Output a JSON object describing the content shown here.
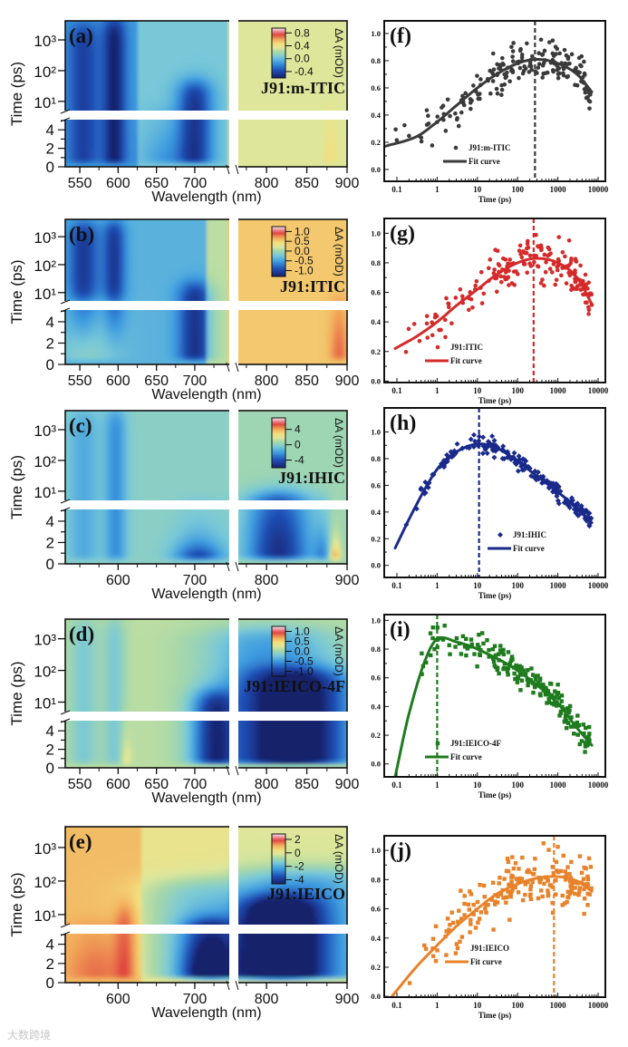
{
  "figure": {
    "watermark": "大数跨境"
  },
  "colormap": [
    [
      0,
      "#17206b"
    ],
    [
      0.15,
      "#1f4fb5"
    ],
    [
      0.3,
      "#3d9be0"
    ],
    [
      0.42,
      "#78c8d8"
    ],
    [
      0.52,
      "#a8d8a8"
    ],
    [
      0.6,
      "#dde69a"
    ],
    [
      0.68,
      "#f3df7e"
    ],
    [
      0.77,
      "#f2ab5a"
    ],
    [
      0.87,
      "#e0473f"
    ],
    [
      0.95,
      "#ef9fae"
    ],
    [
      1,
      "#fbf0f2"
    ]
  ],
  "chart_data": [
    {
      "type": "heatmap",
      "panel_label": "(a)",
      "sample": "J91:m-ITIC",
      "xlabel": "Wavelength (nm)",
      "ylabel": "Time (ps)",
      "x_segments": [
        [
          531,
          745
        ],
        [
          765,
          900
        ]
      ],
      "xticks": [
        550,
        600,
        650,
        700,
        800,
        850,
        900
      ],
      "y_upper": {
        "scale": "log",
        "range": [
          5,
          4170
        ],
        "ticks": [
          10,
          100,
          1000
        ],
        "tick_labels": [
          "10¹",
          "10²",
          "10³"
        ]
      },
      "y_lower": {
        "scale": "linear",
        "range": [
          0,
          5.1
        ],
        "ticks": [
          0,
          2,
          4
        ],
        "tick_labels": [
          "0",
          "2",
          "4"
        ]
      },
      "colorbar": {
        "label": "ΔA (mOD)",
        "range": [
          -0.6,
          0.95
        ],
        "ticks": [
          0.8,
          0.4,
          0.0,
          -0.4
        ],
        "tick_labels": [
          "0.8",
          "0.4",
          "0.0",
          "-0.4"
        ]
      },
      "baseline_levels": [
        [
          625,
          0.3
        ],
        [
          745,
          0.42
        ],
        [
          901,
          0.6
        ]
      ],
      "features": [
        {
          "wl": 555,
          "width": 14,
          "level": -0.2,
          "t_on": 0.3,
          "t_off": 3000
        },
        {
          "wl": 595,
          "width": 10,
          "level": -0.3,
          "t_on": 0,
          "t_off": 4000
        },
        {
          "wl": 700,
          "width": 16,
          "level": -0.35,
          "t_on": 0,
          "t_off": 40
        },
        {
          "wl": 660,
          "width": 20,
          "level": -0.12,
          "t_on": 0,
          "t_off": 4
        },
        {
          "wl": 880,
          "width": 6,
          "level": 0.08,
          "t_on": 0,
          "t_off": 5
        }
      ]
    },
    {
      "type": "heatmap",
      "panel_label": "(b)",
      "sample": "J91:ITIC",
      "xlabel": "Wavelength (nm)",
      "ylabel": "Time (ps)",
      "x_segments": [
        [
          531,
          745
        ],
        [
          765,
          900
        ]
      ],
      "xticks": [
        550,
        600,
        650,
        700,
        800,
        850,
        900
      ],
      "y_upper": {
        "scale": "log",
        "range": [
          5,
          4170
        ],
        "ticks": [
          10,
          100,
          1000
        ],
        "tick_labels": [
          "10¹",
          "10²",
          "10³"
        ]
      },
      "y_lower": {
        "scale": "linear",
        "range": [
          0,
          5.1
        ],
        "ticks": [
          0,
          2,
          4
        ],
        "tick_labels": [
          "0",
          "2",
          "4"
        ]
      },
      "colorbar": {
        "label": "ΔA (mOD)",
        "range": [
          -1.3,
          1.25
        ],
        "ticks": [
          1.0,
          0.5,
          0.0,
          -0.5,
          -1.0
        ],
        "tick_labels": [
          "1.0",
          "0.5",
          "0.0",
          "-0.5",
          "-1.0"
        ]
      },
      "baseline_levels": [
        [
          715,
          0.36
        ],
        [
          745,
          0.55
        ],
        [
          901,
          0.72
        ]
      ],
      "features": [
        {
          "wl": 555,
          "width": 14,
          "level": -0.28,
          "t_on": 5,
          "t_off": 3000
        },
        {
          "wl": 595,
          "width": 10,
          "level": -0.28,
          "t_on": 5,
          "t_off": 3000
        },
        {
          "wl": 700,
          "width": 15,
          "level": -0.3,
          "t_on": 0,
          "t_off": 20
        },
        {
          "wl": 890,
          "width": 8,
          "level": 0.12,
          "t_on": 0,
          "t_off": 5
        },
        {
          "wl": 560,
          "width": 30,
          "level": 0.1,
          "t_on": 0,
          "t_off": 5
        }
      ]
    },
    {
      "type": "heatmap",
      "panel_label": "(c)",
      "sample": "J91:IHIC",
      "xlabel": "Wavelength (nm)",
      "ylabel": "Time (ps)",
      "x_segments": [
        [
          531,
          745
        ],
        [
          765,
          900
        ]
      ],
      "xticks": [
        600,
        700,
        800,
        900
      ],
      "y_upper": {
        "scale": "log",
        "range": [
          5,
          4170
        ],
        "ticks": [
          10,
          100,
          1000
        ],
        "tick_labels": [
          "10¹",
          "10²",
          "10³"
        ]
      },
      "y_lower": {
        "scale": "linear",
        "range": [
          0,
          5.1
        ],
        "ticks": [
          0,
          2,
          4
        ],
        "tick_labels": [
          "0",
          "2",
          "4"
        ]
      },
      "colorbar": {
        "label": "ΔA (mOD)",
        "range": [
          -6,
          7
        ],
        "ticks": [
          4,
          0,
          -4
        ],
        "tick_labels": [
          "4",
          "0",
          "-4"
        ]
      },
      "baseline_levels": [
        [
          745,
          0.46
        ],
        [
          901,
          0.5
        ]
      ],
      "features": [
        {
          "wl": 555,
          "width": 15,
          "level": -0.12,
          "t_on": 0,
          "t_off": 4000
        },
        {
          "wl": 597,
          "width": 10,
          "level": -0.18,
          "t_on": 0,
          "t_off": 4000
        },
        {
          "wl": 705,
          "width": 22,
          "level": -0.42,
          "t_on": 0,
          "t_off": 2
        },
        {
          "wl": 815,
          "width": 28,
          "level": -0.45,
          "t_on": 0,
          "t_off": 8
        },
        {
          "wl": 885,
          "width": 5,
          "level": 0.4,
          "t_on": 0,
          "t_off": 2
        },
        {
          "wl": 870,
          "width": 8,
          "level": -0.2,
          "t_on": 0,
          "t_off": 3
        }
      ]
    },
    {
      "type": "heatmap",
      "panel_label": "(d)",
      "sample": "J91:IEICO-4F",
      "xlabel": "Wavelength (nm)",
      "ylabel": "Time (ps)",
      "x_segments": [
        [
          531,
          745
        ],
        [
          765,
          900
        ]
      ],
      "xticks": [
        550,
        600,
        650,
        700,
        800,
        850,
        900
      ],
      "y_upper": {
        "scale": "log",
        "range": [
          5,
          4170
        ],
        "ticks": [
          10,
          100,
          1000
        ],
        "tick_labels": [
          "10¹",
          "10²",
          "10³"
        ]
      },
      "y_lower": {
        "scale": "linear",
        "range": [
          0,
          5.1
        ],
        "ticks": [
          0,
          2,
          4
        ],
        "tick_labels": [
          "0",
          "2",
          "4"
        ]
      },
      "colorbar": {
        "label": "ΔA (mOD)",
        "range": [
          -1.25,
          1.25
        ],
        "ticks": [
          1.0,
          0.5,
          0.0,
          -0.5,
          -1.0
        ],
        "tick_labels": [
          "1.0",
          "0.5",
          "0.0",
          "-0.5",
          "-1.0"
        ]
      },
      "baseline_levels": [
        [
          901,
          0.55
        ]
      ],
      "features": [
        {
          "wl": 555,
          "width": 14,
          "level": -0.12,
          "t_on": 0,
          "t_off": 4000
        },
        {
          "wl": 595,
          "width": 10,
          "level": -0.12,
          "t_on": 0,
          "t_off": 4000
        },
        {
          "wl": 610,
          "width": 5,
          "level": 0.12,
          "t_on": 0,
          "t_off": 3
        },
        {
          "wl": 725,
          "width": 20,
          "level": -0.4,
          "t_on": 0,
          "t_off": 20
        },
        {
          "wl": 840,
          "width": 45,
          "level": -0.5,
          "t_on": 0,
          "t_off": 100
        },
        {
          "wl": 800,
          "width": 60,
          "level": -0.25,
          "t_on": 0,
          "t_off": 2000
        }
      ]
    },
    {
      "type": "heatmap",
      "panel_label": "(e)",
      "sample": "J91:IEICO",
      "xlabel": "Wavelength (nm)",
      "ylabel": "Time (ps)",
      "x_segments": [
        [
          531,
          745
        ],
        [
          765,
          900
        ]
      ],
      "xticks": [
        600,
        700,
        800,
        900
      ],
      "y_upper": {
        "scale": "log",
        "range": [
          5,
          4170
        ],
        "ticks": [
          10,
          100,
          1000
        ],
        "tick_labels": [
          "10¹",
          "10²",
          "10³"
        ]
      },
      "y_lower": {
        "scale": "linear",
        "range": [
          0,
          5.1
        ],
        "ticks": [
          0,
          2,
          4
        ],
        "tick_labels": [
          "0",
          "2",
          "4"
        ]
      },
      "colorbar": {
        "label": "ΔA (mOD)",
        "range": [
          -4.6,
          2.8
        ],
        "ticks": [
          2,
          0,
          -2,
          -4
        ],
        "tick_labels": [
          "2",
          "0",
          "-2",
          "-4"
        ]
      },
      "baseline_levels": [
        [
          630,
          0.74
        ],
        [
          745,
          0.64
        ],
        [
          901,
          0.6
        ]
      ],
      "features": [
        {
          "wl": 610,
          "width": 10,
          "level": 0.12,
          "t_on": 0,
          "t_off": 20
        },
        {
          "wl": 575,
          "width": 30,
          "level": 0.1,
          "t_on": 0,
          "t_off": 5
        },
        {
          "wl": 720,
          "width": 25,
          "level": -0.6,
          "t_on": 0,
          "t_off": 6
        },
        {
          "wl": 700,
          "width": 50,
          "level": -0.2,
          "t_on": 0,
          "t_off": 100
        },
        {
          "wl": 815,
          "width": 35,
          "level": -0.65,
          "t_on": 0,
          "t_off": 30
        },
        {
          "wl": 850,
          "width": 70,
          "level": -0.3,
          "t_on": 0,
          "t_off": 200
        }
      ]
    },
    {
      "type": "scatter",
      "panel_label": "(f)",
      "xlabel": "Time (ps)",
      "xscale": "log",
      "xlim": [
        0.048,
        15000
      ],
      "xticks": [
        0.1,
        1,
        10,
        100,
        1000,
        10000
      ],
      "xtick_labels": [
        "0.1",
        "1",
        "10",
        "100",
        "1000",
        "10000"
      ],
      "ylim": [
        -0.087,
        1.093
      ],
      "yticks": [
        0,
        0.2,
        0.4,
        0.6,
        0.8,
        1.0
      ],
      "ytick_labels": [
        "0.0",
        "0.2",
        "0.4",
        "0.6",
        "0.8",
        "1.0"
      ],
      "color": "#3a3a3a",
      "marker": "circle",
      "legend": {
        "data": "J91:m-ITIC",
        "fit": "Fit curve",
        "placement": "bottom-center"
      },
      "peak_time_ps": 270,
      "noise": 0.08,
      "n_points": 190,
      "fit_curve": {
        "t": [
          0.05,
          0.3,
          1,
          3,
          10,
          30,
          100,
          300,
          1000,
          3000,
          7000
        ],
        "y": [
          0.17,
          0.24,
          0.35,
          0.47,
          0.6,
          0.7,
          0.78,
          0.81,
          0.78,
          0.7,
          0.57
        ]
      }
    },
    {
      "type": "scatter",
      "panel_label": "(g)",
      "xlabel": "Time (ps)",
      "xscale": "log",
      "xlim": [
        0.048,
        15000
      ],
      "xticks": [
        0.1,
        1,
        10,
        100,
        1000,
        10000
      ],
      "xtick_labels": [
        "0.1",
        "1",
        "10",
        "100",
        "1000",
        "10000"
      ],
      "ylim": [
        -0.01,
        1.1
      ],
      "yticks": [
        0,
        0.2,
        0.4,
        0.6,
        0.8,
        1.0
      ],
      "ytick_labels": [
        "0.0",
        "0.2",
        "0.4",
        "0.6",
        "0.8",
        "1.0"
      ],
      "color": "#d42a2a",
      "marker": "circle",
      "legend": {
        "data": "J91:ITIC",
        "fit": "Fit curve",
        "placement": "bottom-left"
      },
      "peak_time_ps": 250,
      "noise": 0.07,
      "n_points": 190,
      "fit_curve": {
        "t": [
          0.09,
          0.3,
          1,
          3,
          10,
          30,
          100,
          300,
          1000,
          3000,
          7000
        ],
        "y": [
          0.22,
          0.3,
          0.4,
          0.51,
          0.62,
          0.72,
          0.8,
          0.83,
          0.8,
          0.7,
          0.52
        ]
      }
    },
    {
      "type": "scatter",
      "panel_label": "(h)",
      "xlabel": "Time (ps)",
      "xscale": "log",
      "xlim": [
        0.048,
        15000
      ],
      "xticks": [
        0.1,
        1,
        10,
        100,
        1000,
        10000
      ],
      "xtick_labels": [
        "0.1",
        "1",
        "10",
        "100",
        "1000",
        "10000"
      ],
      "ylim": [
        -0.09,
        1.18
      ],
      "yticks": [
        0,
        0.2,
        0.4,
        0.6,
        0.8,
        1.0
      ],
      "ytick_labels": [
        "0.0",
        "0.2",
        "0.4",
        "0.6",
        "0.8",
        "1.0"
      ],
      "color": "#1a2a8a",
      "marker": "diamond",
      "legend": {
        "data": "J91:IHIC",
        "fit": "Fit curve",
        "placement": "bottom-right"
      },
      "peak_time_ps": 11,
      "noise": 0.03,
      "n_points": 200,
      "fit_curve": {
        "t": [
          0.09,
          0.3,
          1,
          3,
          10,
          30,
          100,
          300,
          1000,
          3000,
          7000
        ],
        "y": [
          0.13,
          0.45,
          0.72,
          0.85,
          0.91,
          0.88,
          0.78,
          0.67,
          0.55,
          0.43,
          0.32
        ]
      }
    },
    {
      "type": "scatter",
      "panel_label": "(i)",
      "xlabel": "Time (ps)",
      "xscale": "log",
      "xlim": [
        0.048,
        15000
      ],
      "xticks": [
        0.1,
        1,
        10,
        100,
        1000,
        10000
      ],
      "xtick_labels": [
        "0.1",
        "1",
        "10",
        "100",
        "1000",
        "10000"
      ],
      "ylim": [
        -0.09,
        1.04
      ],
      "yticks": [
        0,
        0.2,
        0.4,
        0.6,
        0.8,
        1.0
      ],
      "ytick_labels": [
        "0.0",
        "0.2",
        "0.4",
        "0.6",
        "0.8",
        "1.0"
      ],
      "color": "#1e7b1e",
      "marker": "square",
      "legend": {
        "data": "J91:IEICO-4F",
        "fit": "Fit curve",
        "placement": "bottom-left"
      },
      "peak_time_ps": 1,
      "noise": 0.05,
      "n_points": 200,
      "fit_curve": {
        "t": [
          0.09,
          0.2,
          0.5,
          1,
          3,
          10,
          100,
          1000,
          3000,
          7000
        ],
        "y": [
          -0.09,
          0.35,
          0.72,
          0.87,
          0.85,
          0.8,
          0.65,
          0.42,
          0.25,
          0.13
        ]
      }
    },
    {
      "type": "scatter",
      "panel_label": "(j)",
      "xlabel": "Time (ps)",
      "xscale": "log",
      "xlim": [
        0.048,
        15000
      ],
      "xticks": [
        0.1,
        1,
        10,
        100,
        1000,
        10000
      ],
      "xtick_labels": [
        "0.1",
        "1",
        "10",
        "100",
        "1000",
        "10000"
      ],
      "ylim": [
        -0.005,
        1.1
      ],
      "yticks": [
        0,
        0.2,
        0.4,
        0.6,
        0.8,
        1.0
      ],
      "ytick_labels": [
        "0.0",
        "0.2",
        "0.4",
        "0.6",
        "0.8",
        "1.0"
      ],
      "color": "#e8822a",
      "marker": "square",
      "legend": {
        "data": "J91:IEICO",
        "fit": "Fit curve",
        "placement": "bottom-center"
      },
      "peak_time_ps": 800,
      "noise": 0.09,
      "n_points": 200,
      "fit_curve": {
        "t": [
          0.075,
          0.3,
          1,
          3,
          10,
          30,
          100,
          300,
          1000,
          3000,
          7000
        ],
        "y": [
          0.0,
          0.2,
          0.35,
          0.48,
          0.6,
          0.7,
          0.77,
          0.81,
          0.82,
          0.79,
          0.72
        ]
      }
    }
  ]
}
